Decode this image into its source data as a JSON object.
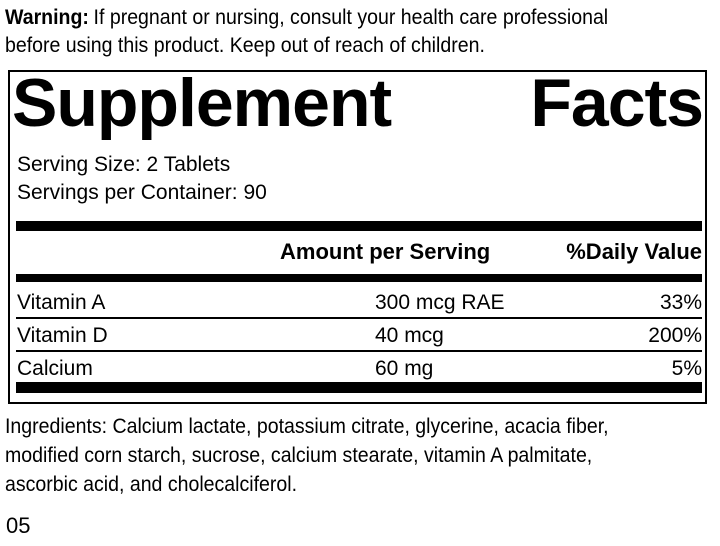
{
  "colors": {
    "ink": "#000000",
    "background": "#ffffff"
  },
  "warning": {
    "label": "Warning:",
    "line1_rest": "If pregnant or nursing, consult your health care professional",
    "line2": "before using this product. Keep out of reach of children."
  },
  "panel": {
    "title": "Supplement Facts",
    "title_words": [
      "Supplement",
      "Facts"
    ],
    "serving_size": "Serving Size: 2 Tablets",
    "servings_per_container": "Servings per Container: 90",
    "columns": {
      "amount": "Amount per Serving",
      "daily_value": "%Daily Value"
    },
    "rows": [
      {
        "name": "Vitamin A",
        "amount": "300 mcg RAE",
        "daily_value": "33%"
      },
      {
        "name": "Vitamin D",
        "amount": "40 mcg",
        "daily_value": "200%"
      },
      {
        "name": "Calcium",
        "amount": "60 mg",
        "daily_value": "5%"
      }
    ]
  },
  "ingredients": {
    "lines": [
      "Ingredients: Calcium lactate, potassium citrate, glycerine, acacia fiber,",
      "modified corn starch, sucrose, calcium stearate, vitamin A palmitate,",
      "ascorbic acid, and cholecalciferol."
    ]
  },
  "footer": {
    "code": "05"
  }
}
